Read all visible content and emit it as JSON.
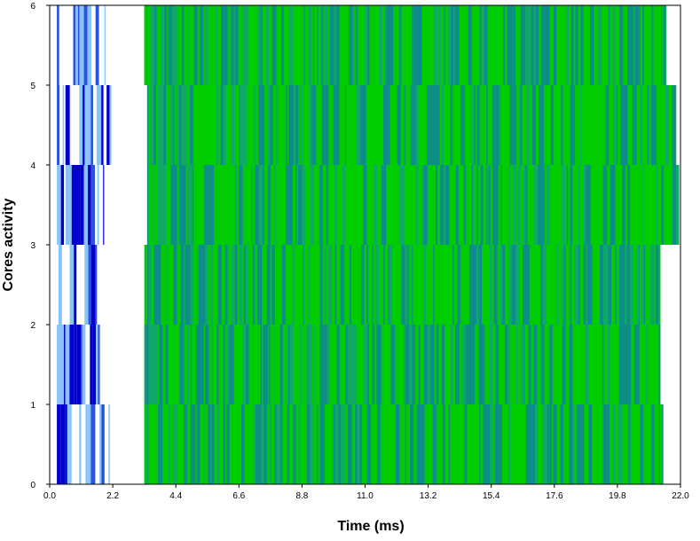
{
  "chart_data": {
    "type": "bar",
    "title": "",
    "xlabel": "Time (ms)",
    "ylabel": "Cores activity",
    "xlim": [
      0.0,
      22.0
    ],
    "ylim": [
      0,
      6
    ],
    "x_ticks": [
      "0.0",
      "2.2",
      "4.4",
      "6.6",
      "8.8",
      "11.0",
      "13.2",
      "15.4",
      "17.6",
      "19.8",
      "22.0"
    ],
    "y_ticks": [
      "0",
      "1",
      "2",
      "3",
      "4",
      "5",
      "6"
    ],
    "grid": false,
    "legend": "none",
    "colors": {
      "phase1_dark": "#0000cc",
      "phase1_light": "#88c4f8",
      "phase1_mid": "#2a52e0",
      "phase2_green": "#00cc00",
      "phase2_teal": "#0e8c8c",
      "phase2_mid": "#10a868",
      "frame": "#000000",
      "background": "#ffffff"
    },
    "lanes": [
      {
        "core": 1,
        "y_range": [
          0,
          1
        ],
        "phase1_range": [
          0.25,
          2.1
        ],
        "phase2_range": [
          3.3,
          21.4
        ]
      },
      {
        "core": 2,
        "y_range": [
          1,
          2
        ],
        "phase1_range": [
          0.25,
          1.75
        ],
        "phase2_range": [
          3.3,
          21.3
        ]
      },
      {
        "core": 3,
        "y_range": [
          2,
          3
        ],
        "phase1_range": [
          0.25,
          1.65
        ],
        "phase2_range": [
          3.3,
          21.3
        ]
      },
      {
        "core": 4,
        "y_range": [
          3,
          4
        ],
        "phase1_range": [
          0.25,
          1.9
        ],
        "phase2_range": [
          3.4,
          21.95
        ]
      },
      {
        "core": 5,
        "y_range": [
          4,
          5
        ],
        "phase1_range": [
          0.25,
          2.15
        ],
        "phase2_range": [
          3.4,
          21.85
        ]
      },
      {
        "core": 6,
        "y_range": [
          5,
          6
        ],
        "phase1_range": [
          0.25,
          1.95
        ],
        "phase2_range": [
          3.3,
          21.5
        ]
      }
    ]
  }
}
